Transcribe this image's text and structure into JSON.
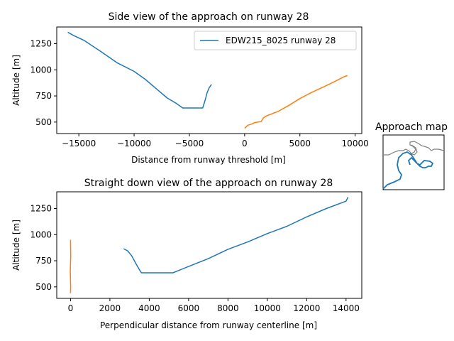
{
  "chart_data": [
    {
      "type": "line",
      "title": "Side view of the approach on runway 28",
      "xlabel": "Distance from runway threshold [m]",
      "ylabel": "Altitude [m]",
      "xlim": [
        -17000,
        10600
      ],
      "ylim": [
        390,
        1410
      ],
      "xticks": [
        -15000,
        -10000,
        -5000,
        0,
        5000,
        10000
      ],
      "xtick_labels": [
        "−15000",
        "−10000",
        "−5000",
        "0",
        "5000",
        "10000"
      ],
      "yticks": [
        500,
        750,
        1000,
        1250
      ],
      "ytick_labels": [
        "500",
        "750",
        "1000",
        "1250"
      ],
      "legend": {
        "position": "top-right",
        "entries": [
          "EDW215_8025 runway 28"
        ]
      },
      "series": [
        {
          "name": "EDW215_8025 runway 28",
          "color": "#1f77b4",
          "x": [
            -16000,
            -15500,
            -14500,
            -13000,
            -11500,
            -10000,
            -9000,
            -8000,
            -7000,
            -6200,
            -5600,
            -5000,
            -4400,
            -3800,
            -3600,
            -3400,
            -3200,
            -3000
          ],
          "y": [
            1360,
            1330,
            1280,
            1175,
            1065,
            985,
            910,
            820,
            730,
            680,
            635,
            635,
            635,
            635,
            700,
            780,
            830,
            860
          ]
        },
        {
          "color": "#ff7f0e",
          "x": [
            0,
            300,
            600,
            900,
            1200,
            1500,
            1700,
            2000,
            3000,
            4000,
            5000,
            6000,
            7000,
            8000,
            9000,
            9300
          ],
          "y": [
            440,
            470,
            480,
            495,
            500,
            505,
            540,
            560,
            600,
            660,
            725,
            780,
            830,
            880,
            935,
            945
          ]
        }
      ]
    },
    {
      "type": "line",
      "title": "Straight down view of the approach on runway 28",
      "xlabel": "Perpendicular distance from runway centerline [m]",
      "ylabel": "Altitude [m]",
      "xlim": [
        -700,
        14800
      ],
      "ylim": [
        390,
        1410
      ],
      "xticks": [
        0,
        2000,
        4000,
        6000,
        8000,
        10000,
        12000,
        14000
      ],
      "xtick_labels": [
        "0",
        "2000",
        "4000",
        "6000",
        "8000",
        "10000",
        "12000",
        "14000"
      ],
      "yticks": [
        500,
        750,
        1000,
        1250
      ],
      "ytick_labels": [
        "500",
        "750",
        "1000",
        "1250"
      ],
      "series": [
        {
          "color": "#1f77b4",
          "x": [
            2700,
            2900,
            3100,
            3300,
            3500,
            3600,
            4500,
            5200,
            5400,
            6000,
            7000,
            8000,
            9000,
            10000,
            11000,
            12000,
            13000,
            14000,
            14100
          ],
          "y": [
            865,
            845,
            800,
            730,
            665,
            635,
            635,
            635,
            650,
            695,
            770,
            860,
            930,
            1010,
            1080,
            1170,
            1250,
            1320,
            1360
          ]
        },
        {
          "color": "#ff7f0e",
          "x": [
            0,
            10,
            -10,
            5,
            0
          ],
          "y": [
            950,
            800,
            650,
            500,
            440
          ]
        }
      ]
    },
    {
      "type": "line",
      "title": "Approach map",
      "series": [
        {
          "color": "#808080",
          "role": "coastline"
        },
        {
          "color": "#1f77b4",
          "role": "ground-track"
        }
      ]
    }
  ]
}
